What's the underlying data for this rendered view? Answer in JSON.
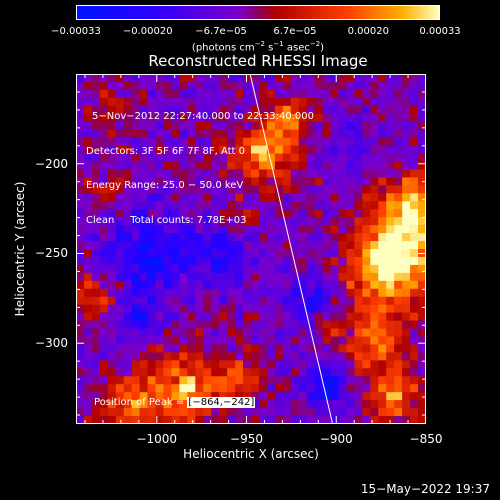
{
  "chart_data": {
    "type": "heatmap",
    "title": "Reconstructed RHESSI Image",
    "xlabel": "Heliocentric X (arcsec)",
    "ylabel": "Heliocentric Y (arcsec)",
    "xlim": [
      -1045,
      -850
    ],
    "ylim": [
      -345,
      -150
    ],
    "xticks": [
      -1000,
      -950,
      -900,
      -850
    ],
    "xtick_labels": [
      "−1000",
      "−950",
      "−900",
      "−850"
    ],
    "yticks": [
      -200,
      -250,
      -300
    ],
    "ytick_labels": [
      "−200",
      "−250",
      "−300"
    ],
    "colorbar": {
      "range": [
        -0.00033,
        0.00033
      ],
      "ticks": [
        -0.00033,
        -0.0002,
        -6.7e-05,
        6.7e-05,
        0.0002,
        0.00033
      ],
      "tick_labels": [
        "−0.00033",
        "−0.00020",
        "−6.7e−05",
        "6.7e−05",
        "0.00020",
        "0.00033"
      ],
      "unit_prefix": "(photons cm",
      "unit_exp1": "−2",
      "unit_mid": " s",
      "unit_exp2": "−1",
      "unit_mid2": " asec",
      "unit_exp3": "−2",
      "unit_suffix": ")"
    },
    "info_lines": [
      "5−Nov−2012 22:27:40.000 to 22:33:40.000",
      "Detectors: 3F 5F 6F 7F 8F, Att 0",
      "Energy Range: 25.0 − 50.0 keV",
      "Clean     Total counts: 7.78E+03"
    ],
    "peak_label": "Position of Peak = ",
    "peak_value": "[−864,−242]",
    "peak": [
      -864,
      -242
    ],
    "limb_line": [
      [
        -948,
        -150
      ],
      [
        -902,
        -345
      ]
    ],
    "bright_regions": [
      {
        "x": -940,
        "y": -195,
        "r": 18,
        "amp": 0.00026
      },
      {
        "x": -928,
        "y": -175,
        "r": 12,
        "amp": 0.0002
      },
      {
        "x": -864,
        "y": -242,
        "r": 20,
        "amp": 0.00033
      },
      {
        "x": -872,
        "y": -262,
        "r": 22,
        "amp": 0.00028
      },
      {
        "x": -858,
        "y": -220,
        "r": 14,
        "amp": 0.00025
      },
      {
        "x": -878,
        "y": -300,
        "r": 16,
        "amp": 0.00022
      },
      {
        "x": -868,
        "y": -330,
        "r": 15,
        "amp": 0.00024
      },
      {
        "x": -985,
        "y": -325,
        "r": 20,
        "amp": 0.00026
      },
      {
        "x": -1015,
        "y": -335,
        "r": 16,
        "amp": 0.0002
      },
      {
        "x": -955,
        "y": -320,
        "r": 12,
        "amp": 0.00017
      },
      {
        "x": -1035,
        "y": -275,
        "r": 13,
        "amp": 0.00015
      },
      {
        "x": -1025,
        "y": -170,
        "r": 10,
        "amp": 0.00011
      },
      {
        "x": -1030,
        "y": -215,
        "r": 9,
        "amp": 0.0001
      },
      {
        "x": -903,
        "y": -290,
        "r": 7,
        "amp": 0.00011
      },
      {
        "x": -955,
        "y": -232,
        "r": 9,
        "amp": 0.0001
      }
    ],
    "dark_regions": [
      {
        "x": -1005,
        "y": -250,
        "r": 22,
        "amp": -0.00022
      },
      {
        "x": -965,
        "y": -250,
        "r": 16,
        "amp": -0.00016
      },
      {
        "x": -915,
        "y": -275,
        "r": 14,
        "amp": -0.00018
      },
      {
        "x": -905,
        "y": -325,
        "r": 12,
        "amp": -0.00022
      },
      {
        "x": -1010,
        "y": -285,
        "r": 12,
        "amp": -0.00015
      },
      {
        "x": -890,
        "y": -190,
        "r": 10,
        "amp": -0.00012
      }
    ]
  },
  "footer": {
    "timestamp": "15−May−2022 19:37"
  }
}
